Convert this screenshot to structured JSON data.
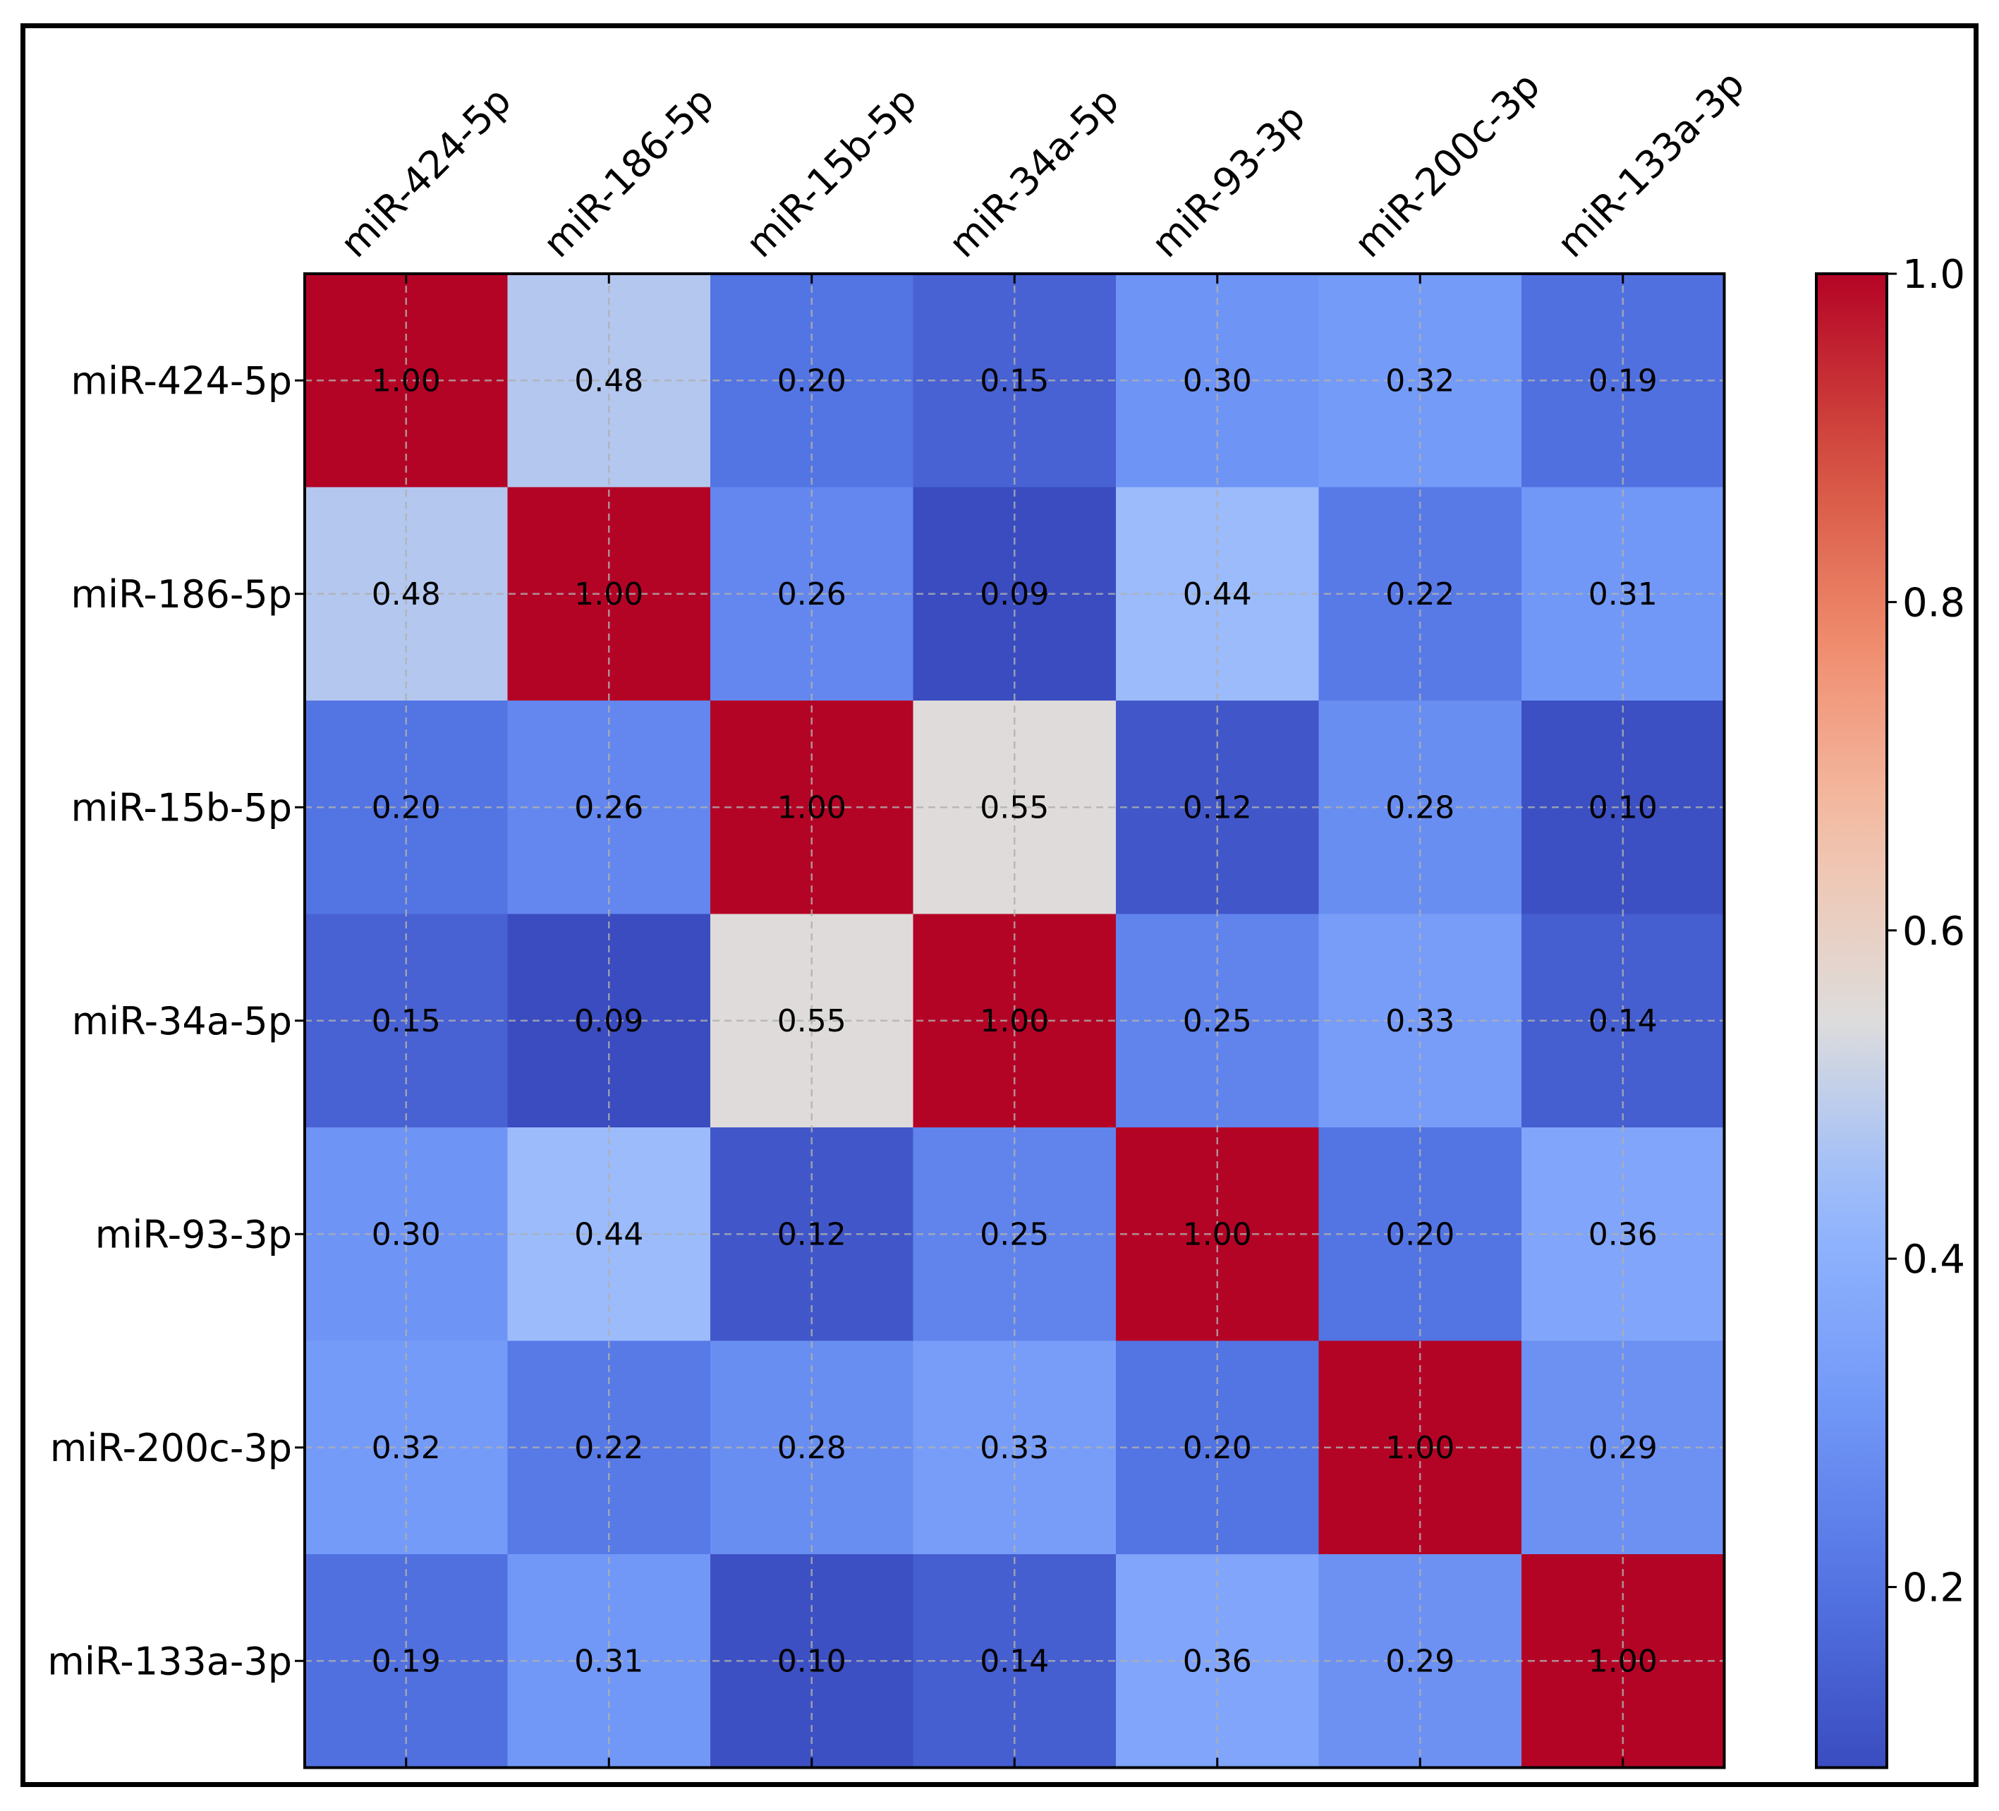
{
  "chart_data": {
    "type": "heatmap",
    "title": "",
    "xlabel": "",
    "ylabel": "",
    "x_labels": [
      "miR-424-5p",
      "miR-186-5p",
      "miR-15b-5p",
      "miR-34a-5p",
      "miR-93-3p",
      "miR-200c-3p",
      "miR-133a-3p"
    ],
    "y_labels": [
      "miR-424-5p",
      "miR-186-5p",
      "miR-15b-5p",
      "miR-34a-5p",
      "miR-93-3p",
      "miR-200c-3p",
      "miR-133a-3p"
    ],
    "values": [
      [
        1.0,
        0.48,
        0.2,
        0.15,
        0.3,
        0.32,
        0.19
      ],
      [
        0.48,
        1.0,
        0.26,
        0.09,
        0.44,
        0.22,
        0.31
      ],
      [
        0.2,
        0.26,
        1.0,
        0.55,
        0.12,
        0.28,
        0.1
      ],
      [
        0.15,
        0.09,
        0.55,
        1.0,
        0.25,
        0.33,
        0.14
      ],
      [
        0.3,
        0.44,
        0.12,
        0.25,
        1.0,
        0.2,
        0.36
      ],
      [
        0.32,
        0.22,
        0.28,
        0.33,
        0.2,
        1.0,
        0.29
      ],
      [
        0.19,
        0.31,
        0.1,
        0.14,
        0.36,
        0.29,
        1.0
      ]
    ],
    "value_labels": [
      [
        "1.00",
        "0.48",
        "0.20",
        "0.15",
        "0.30",
        "0.32",
        "0.19"
      ],
      [
        "0.48",
        "1.00",
        "0.26",
        "0.09",
        "0.44",
        "0.22",
        "0.31"
      ],
      [
        "0.20",
        "0.26",
        "1.00",
        "0.55",
        "0.12",
        "0.28",
        "0.10"
      ],
      [
        "0.15",
        "0.09",
        "0.55",
        "1.00",
        "0.25",
        "0.33",
        "0.14"
      ],
      [
        "0.30",
        "0.44",
        "0.12",
        "0.25",
        "1.00",
        "0.20",
        "0.36"
      ],
      [
        "0.32",
        "0.22",
        "0.28",
        "0.33",
        "0.20",
        "1.00",
        "0.29"
      ],
      [
        "0.19",
        "0.31",
        "0.10",
        "0.14",
        "0.36",
        "0.29",
        "1.00"
      ]
    ],
    "colormap": "coolwarm",
    "vmin": 0.09,
    "vmax": 1.0,
    "colorbar": {
      "ticks": [
        0.2,
        0.4,
        0.6,
        0.8,
        1.0
      ],
      "tick_labels": [
        "0.2",
        "0.4",
        "0.6",
        "0.8",
        "1.0"
      ]
    },
    "grid": true,
    "legend": "colorbar-right"
  }
}
